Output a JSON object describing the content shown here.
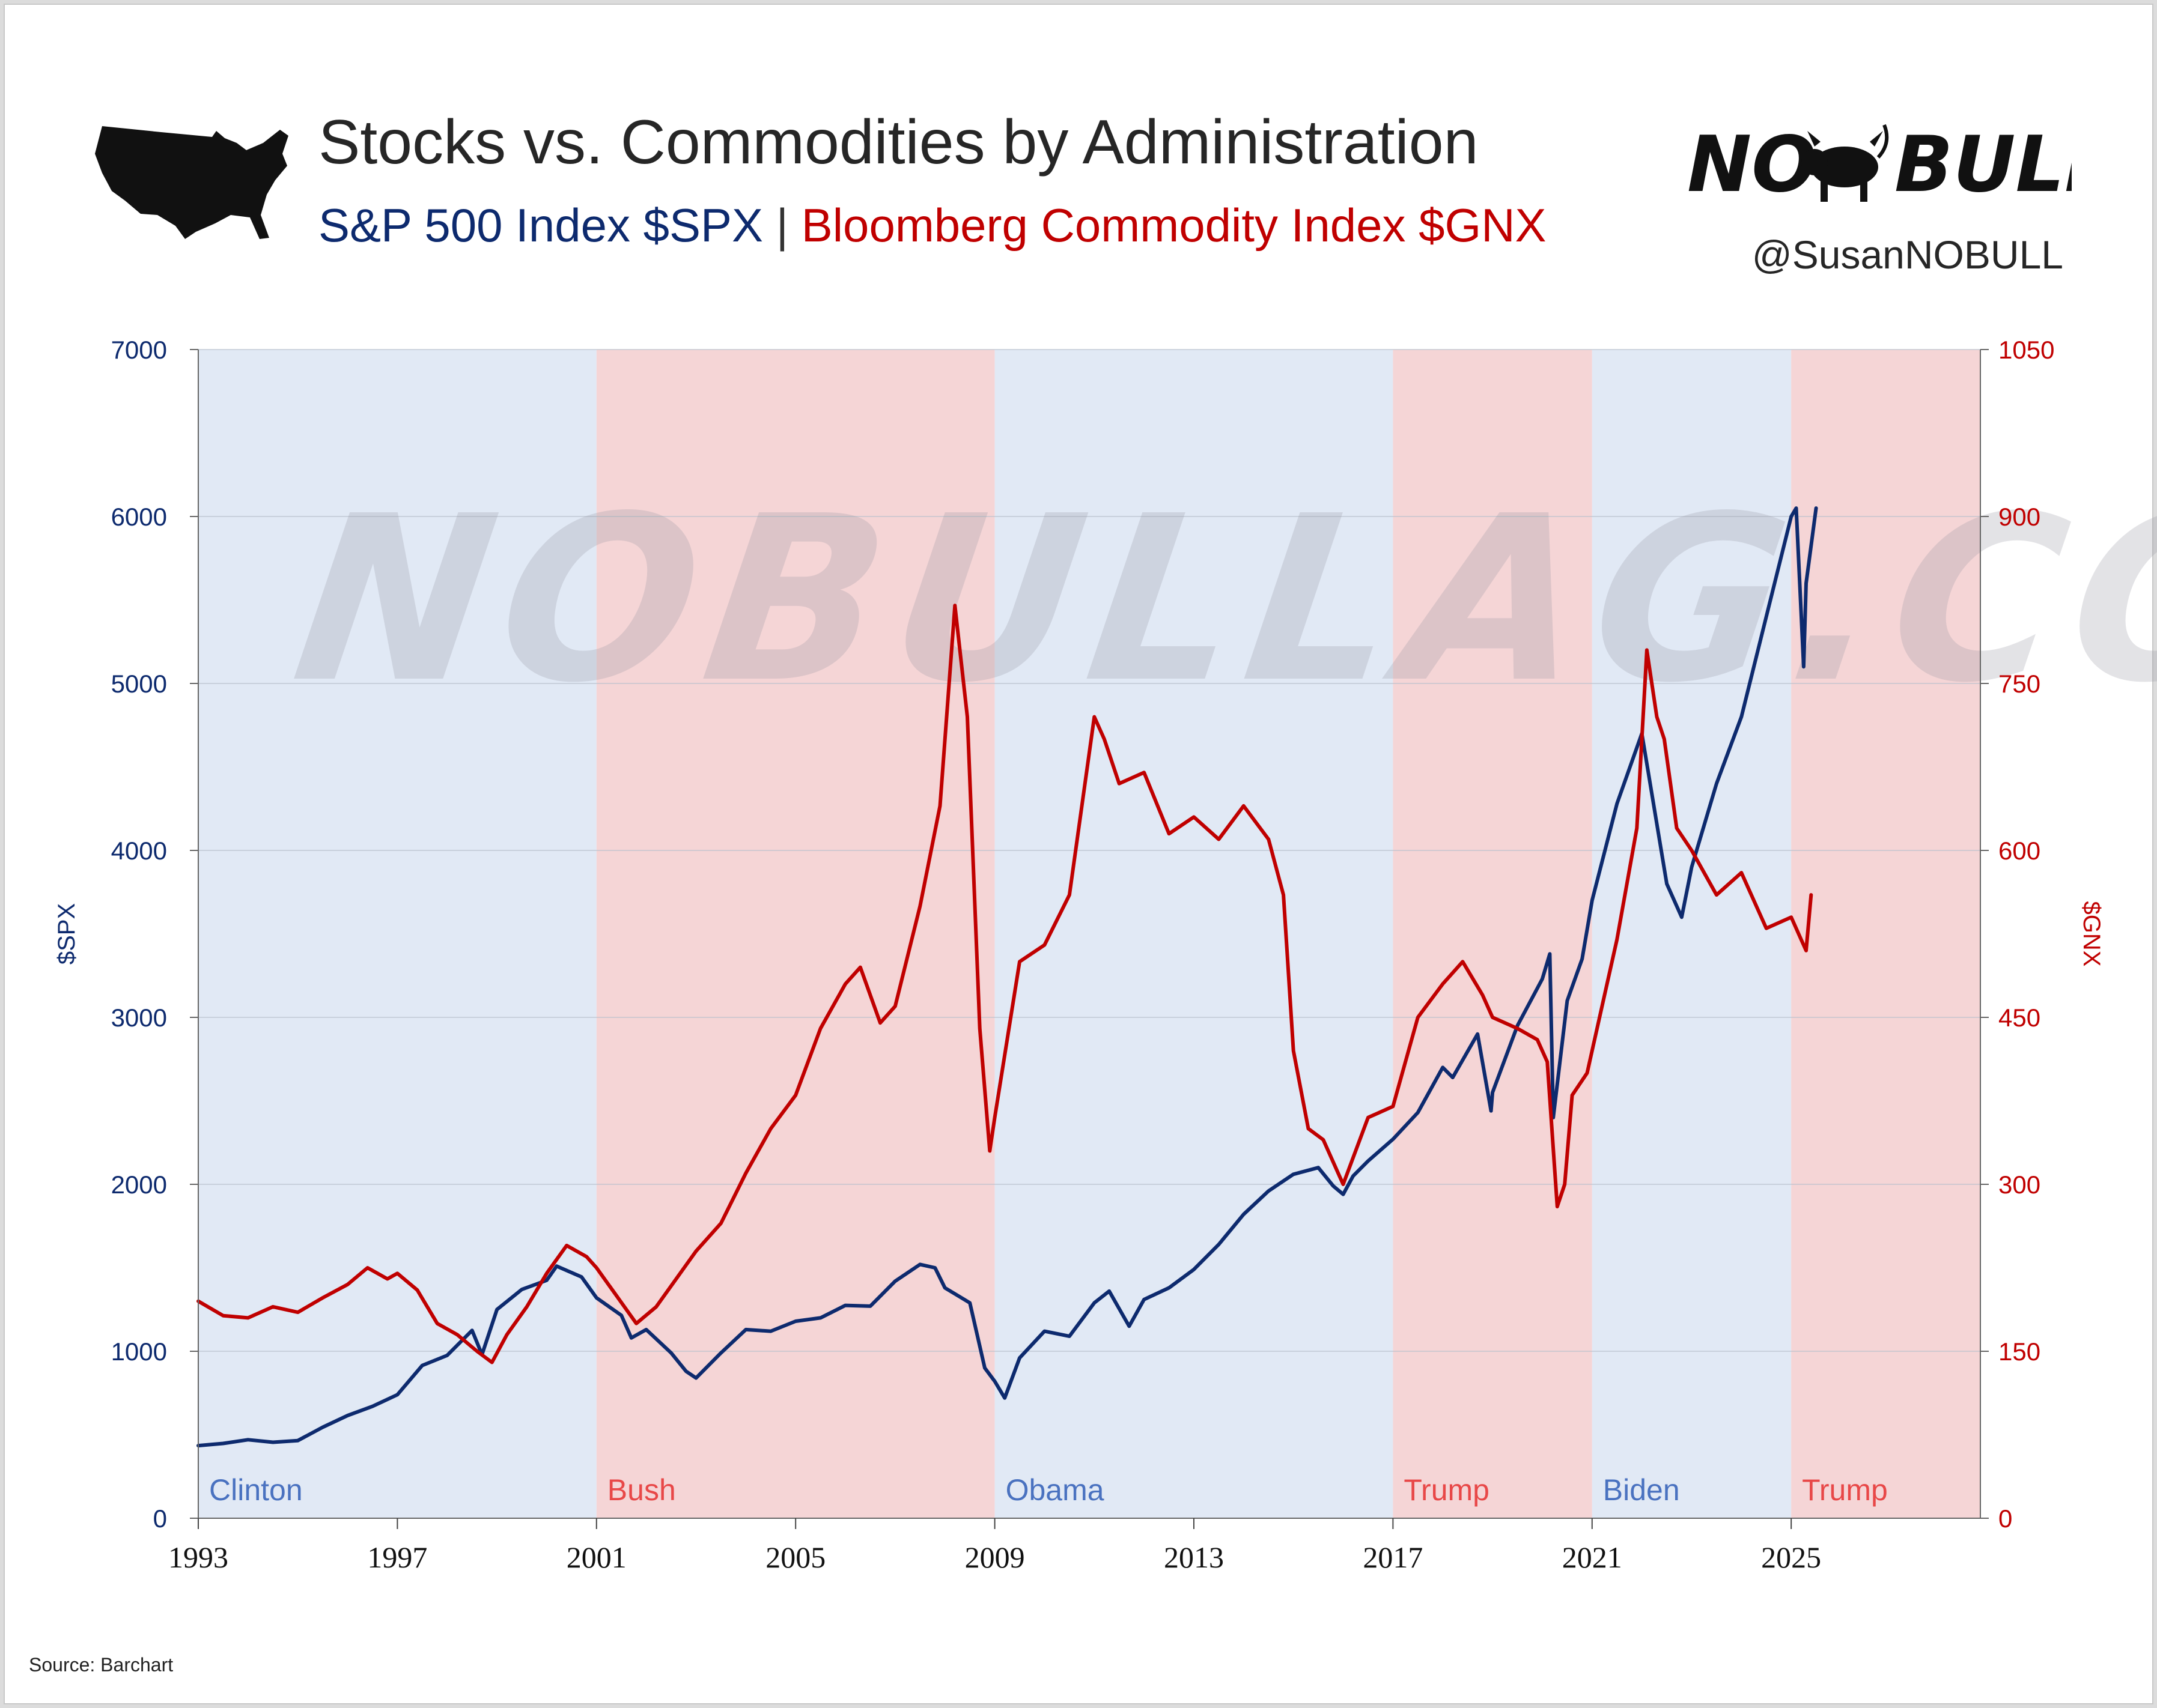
{
  "header": {
    "title": "Stocks vs. Commodities by Administration",
    "subtitle_spx": "S&P 500 Index $SPX",
    "subtitle_sep": " | ",
    "subtitle_gnx": "Bloomberg Commodity Index $GNX",
    "brand_no": "NO",
    "brand_bull": "BULL",
    "brand_icon": "bull-icon",
    "handle": "@SusanNOBULL",
    "map_icon": "usa-map-icon"
  },
  "watermark": "NOBULLAG.COM",
  "footer": {
    "source": "Source:  Barchart"
  },
  "colors": {
    "spx": "#0d2a6e",
    "gnx": "#c00000",
    "democrat_band": "#e1e9f5",
    "republican_band": "#f5d5d6",
    "democrat_label": "#4a72c0",
    "republican_label": "#e84848"
  },
  "chart_data": {
    "type": "line",
    "title": "Stocks vs. Commodities by Administration",
    "x_ticks": [
      "1993",
      "1997",
      "2001",
      "2005",
      "2009",
      "2013",
      "2017",
      "2021",
      "2025"
    ],
    "xlim": [
      1993,
      2028.8
    ],
    "left_axis": {
      "label": "$SPX",
      "ylim": [
        0,
        7000
      ],
      "ticks": [
        "0",
        "1000",
        "2000",
        "3000",
        "4000",
        "5000",
        "6000",
        "7000"
      ]
    },
    "right_axis": {
      "label": "$GNX",
      "ylim": [
        0,
        1050
      ],
      "ticks": [
        "0",
        "150",
        "300",
        "450",
        "600",
        "750",
        "900",
        "1050"
      ]
    },
    "grid": true,
    "administrations": [
      {
        "name": "Clinton",
        "start": 1993.0,
        "end": 2001.0,
        "party": "D"
      },
      {
        "name": "Bush",
        "start": 2001.0,
        "end": 2009.0,
        "party": "R"
      },
      {
        "name": "Obama",
        "start": 2009.0,
        "end": 2017.0,
        "party": "D"
      },
      {
        "name": "Trump",
        "start": 2017.0,
        "end": 2021.0,
        "party": "R"
      },
      {
        "name": "Biden",
        "start": 2021.0,
        "end": 2025.0,
        "party": "D"
      },
      {
        "name": "Trump",
        "start": 2025.0,
        "end": 2028.8,
        "party": "R"
      }
    ],
    "series": [
      {
        "name": "S&P 500 Index $SPX",
        "axis": "left",
        "x": [
          1993.0,
          1993.5,
          1994.0,
          1994.5,
          1995.0,
          1995.5,
          1996.0,
          1996.5,
          1997.0,
          1997.5,
          1998.0,
          1998.5,
          1998.7,
          1999.0,
          1999.5,
          2000.0,
          2000.2,
          2000.7,
          2001.0,
          2001.5,
          2001.7,
          2002.0,
          2002.5,
          2002.8,
          2003.0,
          2003.5,
          2004.0,
          2004.5,
          2005.0,
          2005.5,
          2006.0,
          2006.5,
          2007.0,
          2007.5,
          2007.8,
          2008.0,
          2008.5,
          2008.8,
          2009.0,
          2009.2,
          2009.5,
          2010.0,
          2010.5,
          2011.0,
          2011.3,
          2011.7,
          2012.0,
          2012.5,
          2013.0,
          2013.5,
          2014.0,
          2014.5,
          2015.0,
          2015.5,
          2015.8,
          2016.0,
          2016.2,
          2016.5,
          2017.0,
          2017.5,
          2018.0,
          2018.2,
          2018.7,
          2018.97,
          2019.0,
          2019.5,
          2020.0,
          2020.15,
          2020.22,
          2020.5,
          2020.8,
          2021.0,
          2021.5,
          2022.0,
          2022.5,
          2022.8,
          2023.0,
          2023.5,
          2024.0,
          2024.5,
          2025.0,
          2025.1,
          2025.25,
          2025.3,
          2025.5
        ],
        "values": [
          435,
          448,
          470,
          455,
          465,
          545,
          615,
          670,
          740,
          915,
          975,
          1125,
          980,
          1250,
          1370,
          1425,
          1510,
          1445,
          1320,
          1215,
          1080,
          1130,
          990,
          880,
          840,
          990,
          1130,
          1120,
          1180,
          1200,
          1275,
          1270,
          1420,
          1520,
          1500,
          1380,
          1290,
          900,
          820,
          720,
          960,
          1120,
          1090,
          1290,
          1360,
          1150,
          1310,
          1380,
          1490,
          1640,
          1820,
          1960,
          2060,
          2100,
          1990,
          1940,
          2050,
          2140,
          2270,
          2430,
          2700,
          2640,
          2900,
          2440,
          2550,
          2950,
          3230,
          3380,
          2400,
          3100,
          3350,
          3700,
          4280,
          4700,
          3800,
          3600,
          3900,
          4400,
          4800,
          5400,
          6000,
          6050,
          5100,
          5600,
          6050
        ]
      },
      {
        "name": "Bloomberg Commodity Index $GNX",
        "axis": "right",
        "x": [
          1993.0,
          1993.5,
          1994.0,
          1994.5,
          1995.0,
          1995.5,
          1996.0,
          1996.4,
          1996.8,
          1997.0,
          1997.4,
          1997.8,
          1998.2,
          1998.6,
          1998.9,
          1999.2,
          1999.6,
          2000.0,
          2000.4,
          2000.8,
          2001.0,
          2001.4,
          2001.8,
          2002.2,
          2002.6,
          2003.0,
          2003.5,
          2004.0,
          2004.5,
          2005.0,
          2005.5,
          2006.0,
          2006.3,
          2006.7,
          2007.0,
          2007.5,
          2007.9,
          2008.2,
          2008.45,
          2008.7,
          2008.9,
          2009.0,
          2009.5,
          2010.0,
          2010.5,
          2011.0,
          2011.2,
          2011.5,
          2012.0,
          2012.5,
          2013.0,
          2013.5,
          2014.0,
          2014.5,
          2014.8,
          2015.0,
          2015.3,
          2015.6,
          2015.9,
          2016.0,
          2016.5,
          2017.0,
          2017.5,
          2018.0,
          2018.4,
          2018.8,
          2019.0,
          2019.5,
          2019.9,
          2020.1,
          2020.3,
          2020.45,
          2020.6,
          2020.9,
          2021.0,
          2021.5,
          2021.9,
          2022.1,
          2022.3,
          2022.45,
          2022.7,
          2023.0,
          2023.5,
          2024.0,
          2024.5,
          2025.0,
          2025.2,
          2025.3,
          2025.4
        ],
        "values": [
          195,
          182,
          180,
          190,
          185,
          198,
          210,
          225,
          215,
          220,
          205,
          175,
          165,
          150,
          140,
          165,
          190,
          220,
          245,
          235,
          225,
          200,
          175,
          190,
          215,
          240,
          265,
          310,
          350,
          380,
          440,
          480,
          495,
          445,
          460,
          550,
          640,
          820,
          720,
          440,
          330,
          360,
          500,
          515,
          560,
          720,
          700,
          660,
          670,
          615,
          630,
          610,
          640,
          610,
          560,
          420,
          350,
          340,
          310,
          300,
          360,
          370,
          450,
          480,
          500,
          470,
          450,
          440,
          430,
          410,
          280,
          300,
          380,
          400,
          420,
          520,
          620,
          780,
          720,
          700,
          620,
          600,
          560,
          580,
          530,
          540,
          520,
          510,
          560
        ]
      }
    ]
  }
}
